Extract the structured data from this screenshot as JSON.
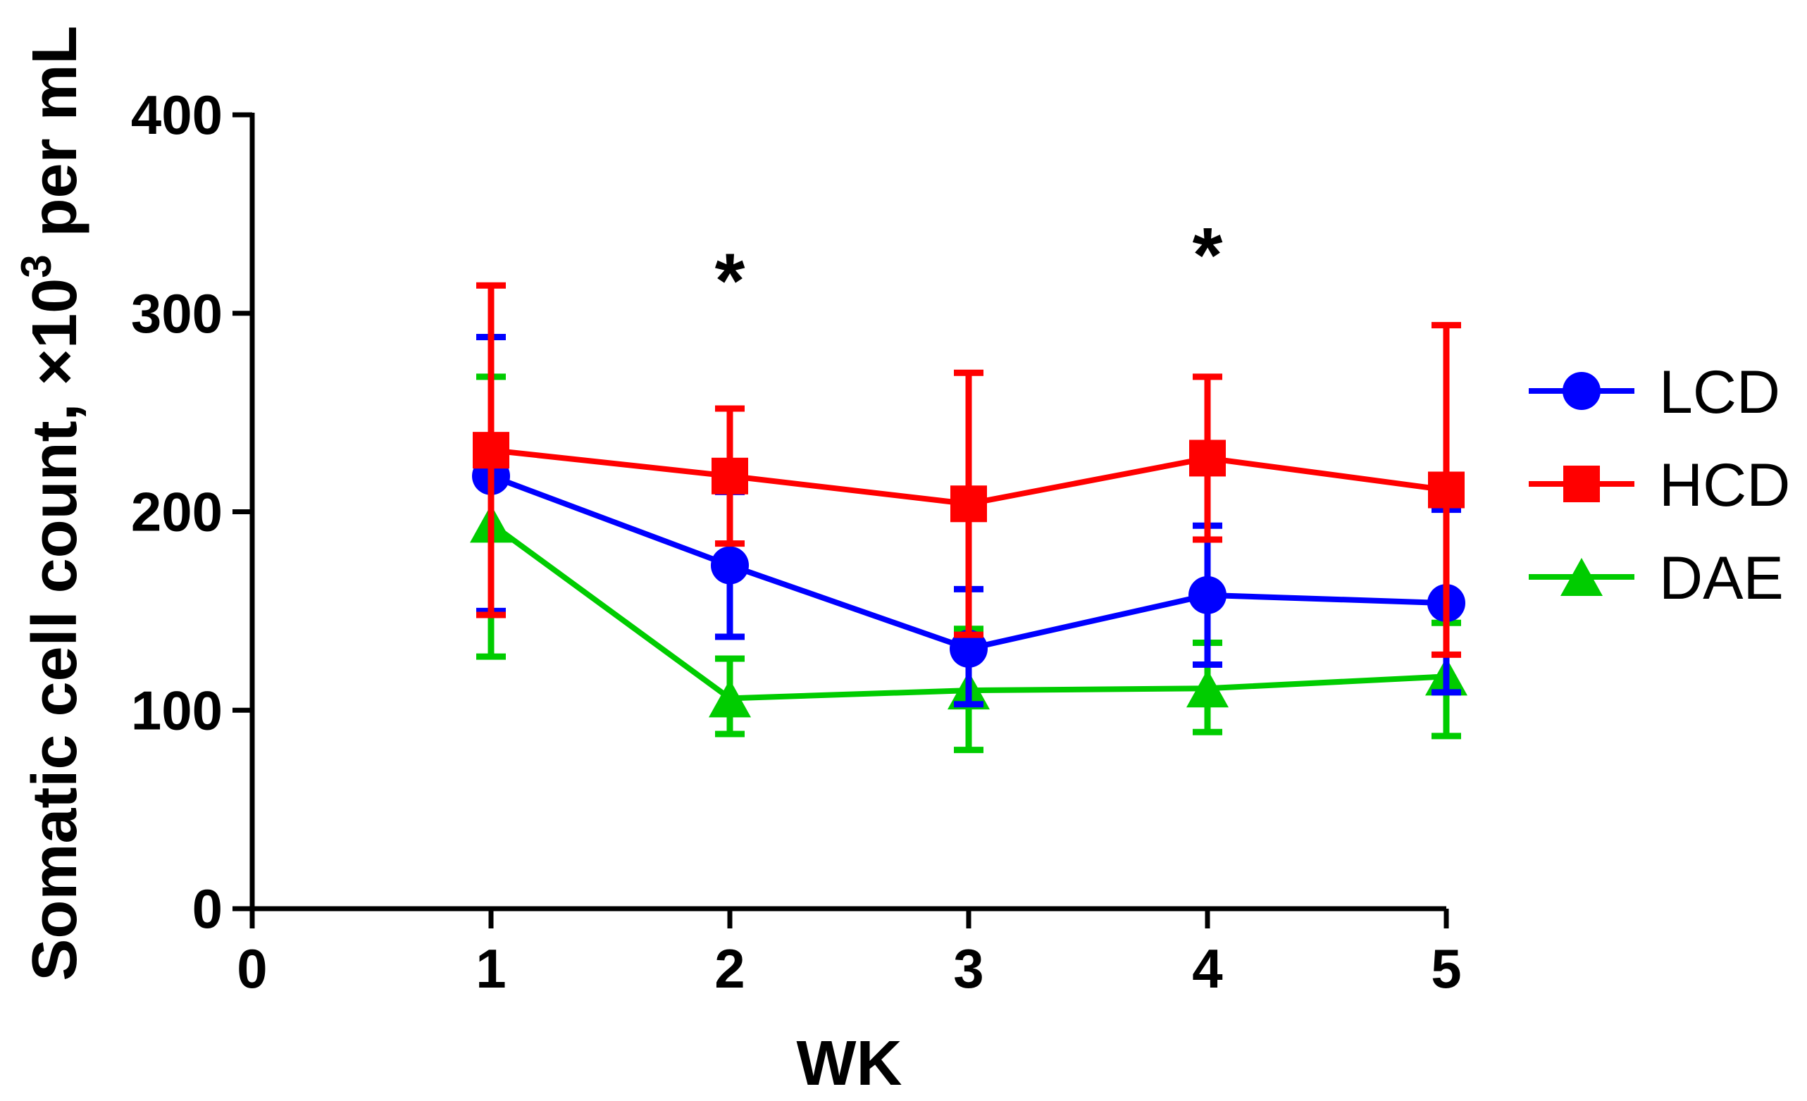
{
  "chart_data": {
    "type": "line",
    "title": "",
    "xlabel": "WK",
    "ylabel_main": "Somatic cell count, ×10",
    "ylabel_sup": "3",
    "ylabel_tail": " per mL",
    "xlim": [
      0,
      5
    ],
    "ylim": [
      0,
      400
    ],
    "xticks": [
      0,
      1,
      2,
      3,
      4,
      5
    ],
    "yticks": [
      0,
      100,
      200,
      300,
      400
    ],
    "x": [
      1,
      2,
      3,
      4,
      5
    ],
    "legend_position": "right",
    "series": [
      {
        "name": "LCD",
        "color": "#0000ff",
        "marker": "circle",
        "values": [
          218,
          173,
          131,
          158,
          154
        ],
        "error_upper": [
          288,
          210,
          161,
          193,
          201
        ],
        "error_lower": [
          150,
          137,
          103,
          123,
          109
        ]
      },
      {
        "name": "HCD",
        "color": "#ff0000",
        "marker": "square",
        "values": [
          231,
          218,
          204,
          227,
          211
        ],
        "error_upper": [
          314,
          252,
          270,
          268,
          294
        ],
        "error_lower": [
          148,
          184,
          138,
          186,
          128
        ]
      },
      {
        "name": "DAE",
        "color": "#00cc00",
        "marker": "triangle",
        "values": [
          194,
          106,
          110,
          111,
          117
        ],
        "error_upper": [
          268,
          126,
          141,
          134,
          144
        ],
        "error_lower": [
          127,
          88,
          80,
          89,
          87
        ]
      }
    ],
    "annotations": [
      {
        "x": 2,
        "y": 320,
        "text": "*"
      },
      {
        "x": 4,
        "y": 333,
        "text": "*"
      }
    ]
  }
}
